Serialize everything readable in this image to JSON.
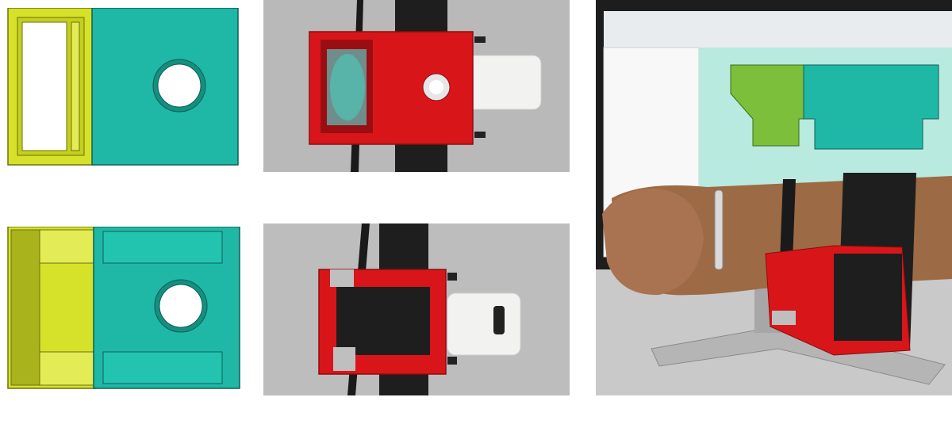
{
  "figure": {
    "panels": [
      {
        "id": "cad-top",
        "kind": "CAD rendering, top view"
      },
      {
        "id": "photo-top",
        "kind": "photograph, printed device top"
      },
      {
        "id": "cad-bottom",
        "kind": "CAD rendering, bottom view"
      },
      {
        "id": "photo-bottom",
        "kind": "photograph, printed device bottom"
      },
      {
        "id": "photo-arm",
        "kind": "photograph, device worn on forearm"
      }
    ],
    "colors": {
      "cad_teal": "#1fb8a6",
      "cad_yellow": "#d6e22a",
      "print_red": "#d8161a",
      "strap_black": "#1e1e1e",
      "device_white": "#f2f2f0",
      "desk_gray": "#bdbdbd",
      "screen_teal": "#8fe0cf",
      "screen_green": "#7cbf3b"
    }
  }
}
